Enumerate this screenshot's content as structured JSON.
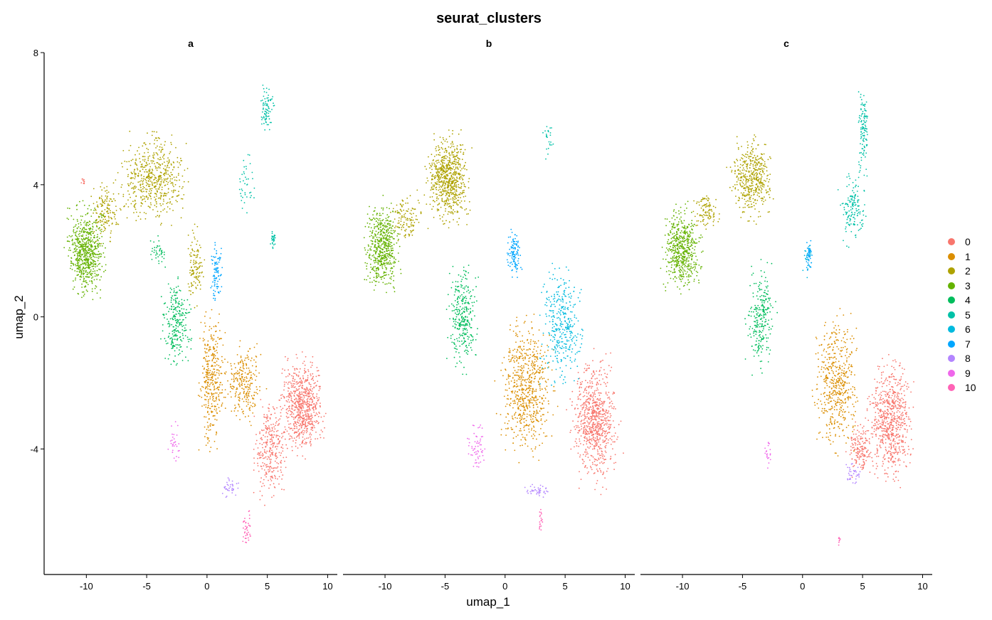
{
  "chart_data": {
    "type": "scatter",
    "title": "seurat_clusters",
    "xlabel": "umap_1",
    "ylabel": "umap_2",
    "xlim": [
      -13.5,
      10.8
    ],
    "ylim": [
      -7.8,
      8
    ],
    "xticks": [
      -10,
      -5,
      0,
      5,
      10
    ],
    "yticks": [
      -4,
      0,
      4,
      8
    ],
    "grid": false,
    "legend_position": "right",
    "panels": [
      "a",
      "b",
      "c"
    ],
    "clusters": [
      {
        "name": "0",
        "color": "#F8766D"
      },
      {
        "name": "1",
        "color": "#DB8E00"
      },
      {
        "name": "2",
        "color": "#AEA200"
      },
      {
        "name": "3",
        "color": "#64B200"
      },
      {
        "name": "4",
        "color": "#00BD5C"
      },
      {
        "name": "5",
        "color": "#00C1A7"
      },
      {
        "name": "6",
        "color": "#00BADE"
      },
      {
        "name": "7",
        "color": "#00A6FF"
      },
      {
        "name": "8",
        "color": "#B385FF"
      },
      {
        "name": "9",
        "color": "#EF67EB"
      },
      {
        "name": "10",
        "color": "#FF63B6"
      }
    ],
    "regions": {
      "a": [
        {
          "cluster": "0",
          "x": [
            5.5,
            10.2
          ],
          "y": [
            -4.5,
            -0.8
          ],
          "n": 700
        },
        {
          "cluster": "0",
          "x": [
            3.5,
            7.0
          ],
          "y": [
            -6.0,
            -2.0
          ],
          "n": 300
        },
        {
          "cluster": "0",
          "x": [
            -10.5,
            -10.0
          ],
          "y": [
            3.9,
            4.3
          ],
          "n": 10
        },
        {
          "cluster": "1",
          "x": [
            -1.0,
            1.8
          ],
          "y": [
            -4.5,
            0.8
          ],
          "n": 350
        },
        {
          "cluster": "1",
          "x": [
            1.0,
            5.0
          ],
          "y": [
            -3.5,
            -0.5
          ],
          "n": 250
        },
        {
          "cluster": "2",
          "x": [
            -7.8,
            -1.0
          ],
          "y": [
            2.5,
            5.9
          ],
          "n": 550
        },
        {
          "cluster": "2",
          "x": [
            -10.0,
            -7.0
          ],
          "y": [
            2.0,
            4.3
          ],
          "n": 150
        },
        {
          "cluster": "2",
          "x": [
            -2.0,
            0.0
          ],
          "y": [
            0.0,
            3.0
          ],
          "n": 120
        },
        {
          "cluster": "3",
          "x": [
            -12.0,
            -8.0
          ],
          "y": [
            0.3,
            3.7
          ],
          "n": 650
        },
        {
          "cluster": "4",
          "x": [
            -4.0,
            -1.0
          ],
          "y": [
            -2.0,
            1.5
          ],
          "n": 250
        },
        {
          "cluster": "4",
          "x": [
            -5.0,
            -3.2
          ],
          "y": [
            1.3,
            2.7
          ],
          "n": 40
        },
        {
          "cluster": "5",
          "x": [
            4.3,
            5.6
          ],
          "y": [
            5.3,
            7.3
          ],
          "n": 80
        },
        {
          "cluster": "5",
          "x": [
            2.3,
            4.3
          ],
          "y": [
            2.7,
            5.3
          ],
          "n": 40
        },
        {
          "cluster": "5",
          "x": [
            5.2,
            5.8
          ],
          "y": [
            2.0,
            2.7
          ],
          "n": 30
        },
        {
          "cluster": "7",
          "x": [
            0.2,
            1.4
          ],
          "y": [
            0.2,
            2.5
          ],
          "n": 90
        },
        {
          "cluster": "8",
          "x": [
            1.0,
            3.0
          ],
          "y": [
            -5.6,
            -4.8
          ],
          "n": 35
        },
        {
          "cluster": "9",
          "x": [
            -3.4,
            -2.0
          ],
          "y": [
            -4.8,
            -3.0
          ],
          "n": 30
        },
        {
          "cluster": "10",
          "x": [
            2.8,
            3.8
          ],
          "y": [
            -7.0,
            -5.8
          ],
          "n": 40
        }
      ],
      "b": [
        {
          "cluster": "0",
          "x": [
            5.0,
            10.0
          ],
          "y": [
            -5.5,
            -0.8
          ],
          "n": 750
        },
        {
          "cluster": "1",
          "x": [
            -1.0,
            4.5
          ],
          "y": [
            -4.8,
            0.5
          ],
          "n": 650
        },
        {
          "cluster": "2",
          "x": [
            -7.0,
            -2.5
          ],
          "y": [
            2.5,
            5.9
          ],
          "n": 700
        },
        {
          "cluster": "2",
          "x": [
            -10.0,
            -6.5
          ],
          "y": [
            2.0,
            4.0
          ],
          "n": 120
        },
        {
          "cluster": "3",
          "x": [
            -12.0,
            -8.5
          ],
          "y": [
            0.5,
            3.7
          ],
          "n": 550
        },
        {
          "cluster": "4",
          "x": [
            -5.0,
            -2.0
          ],
          "y": [
            -2.0,
            2.0
          ],
          "n": 300
        },
        {
          "cluster": "5",
          "x": [
            3.0,
            4.2
          ],
          "y": [
            4.5,
            6.5
          ],
          "n": 25
        },
        {
          "cluster": "6",
          "x": [
            2.5,
            7.0
          ],
          "y": [
            -2.5,
            2.0
          ],
          "n": 350
        },
        {
          "cluster": "7",
          "x": [
            0.0,
            1.5
          ],
          "y": [
            1.0,
            2.7
          ],
          "n": 110
        },
        {
          "cluster": "8",
          "x": [
            1.3,
            4.0
          ],
          "y": [
            -5.5,
            -5.0
          ],
          "n": 40
        },
        {
          "cluster": "9",
          "x": [
            -3.3,
            -1.5
          ],
          "y": [
            -4.8,
            -3.0
          ],
          "n": 60
        },
        {
          "cluster": "10",
          "x": [
            2.7,
            3.2
          ],
          "y": [
            -6.8,
            -5.5
          ],
          "n": 20
        }
      ],
      "c": [
        {
          "cluster": "0",
          "x": [
            5.0,
            9.6
          ],
          "y": [
            -5.5,
            -0.8
          ],
          "n": 700
        },
        {
          "cluster": "0",
          "x": [
            3.5,
            6.0
          ],
          "y": [
            -5.0,
            -3.0
          ],
          "n": 150
        },
        {
          "cluster": "1",
          "x": [
            0.5,
            5.0
          ],
          "y": [
            -4.5,
            0.5
          ],
          "n": 500
        },
        {
          "cluster": "2",
          "x": [
            -6.5,
            -2.0
          ],
          "y": [
            2.5,
            5.8
          ],
          "n": 450
        },
        {
          "cluster": "2",
          "x": [
            -9.5,
            -6.5
          ],
          "y": [
            2.5,
            4.0
          ],
          "n": 100
        },
        {
          "cluster": "3",
          "x": [
            -12.0,
            -8.0
          ],
          "y": [
            0.5,
            3.6
          ],
          "n": 550
        },
        {
          "cluster": "4",
          "x": [
            -5.0,
            -2.0
          ],
          "y": [
            -2.0,
            2.0
          ],
          "n": 250
        },
        {
          "cluster": "5",
          "x": [
            4.5,
            5.6
          ],
          "y": [
            4.0,
            7.3
          ],
          "n": 120
        },
        {
          "cluster": "5",
          "x": [
            2.8,
            5.5
          ],
          "y": [
            2.0,
            4.5
          ],
          "n": 150
        },
        {
          "cluster": "6",
          "x": [
            0.0,
            1.0
          ],
          "y": [
            1.0,
            2.5
          ],
          "n": 30
        },
        {
          "cluster": "7",
          "x": [
            0.2,
            0.9
          ],
          "y": [
            1.3,
            2.5
          ],
          "n": 40
        },
        {
          "cluster": "8",
          "x": [
            3.5,
            5.0
          ],
          "y": [
            -5.2,
            -4.3
          ],
          "n": 35
        },
        {
          "cluster": "9",
          "x": [
            -3.2,
            -2.5
          ],
          "y": [
            -4.8,
            -3.5
          ],
          "n": 20
        },
        {
          "cluster": "10",
          "x": [
            2.9,
            3.2
          ],
          "y": [
            -7.0,
            -6.5
          ],
          "n": 8
        }
      ]
    }
  }
}
